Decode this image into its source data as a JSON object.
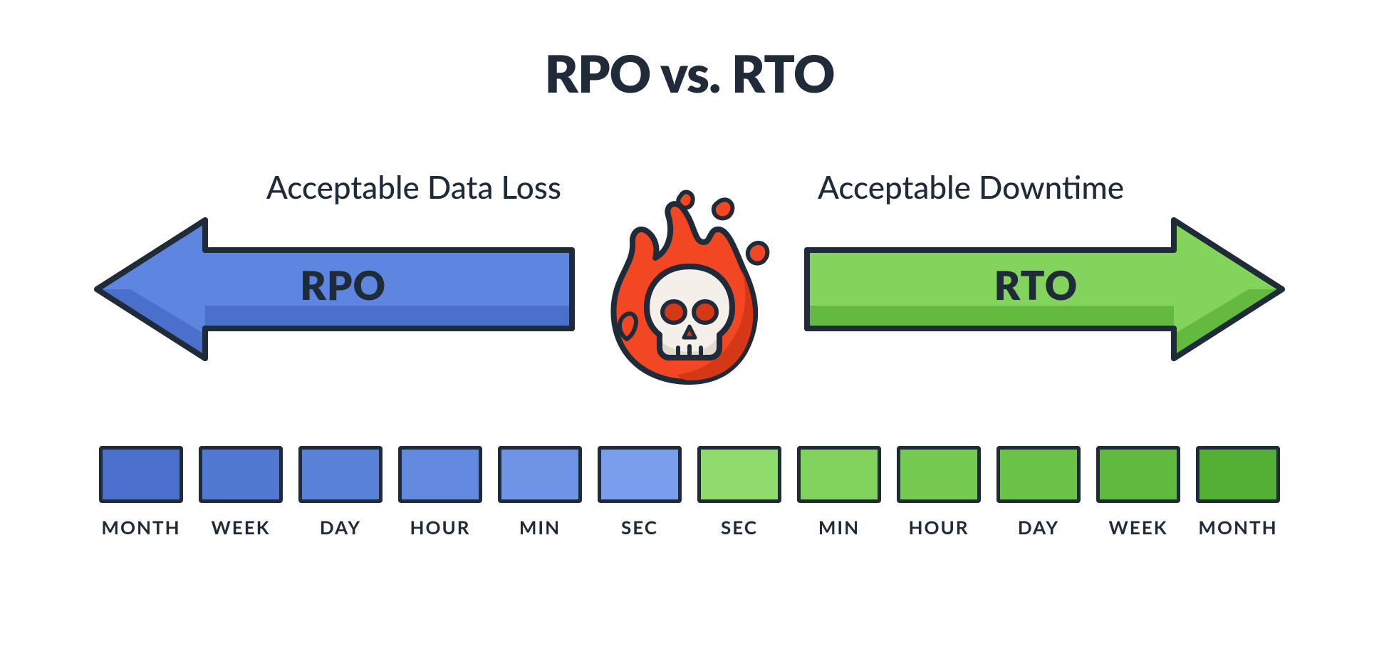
{
  "title": "RPO vs. RTO",
  "left": {
    "topLabel": "Acceptable Data Loss",
    "mainLabel": "RPO",
    "fill": "#5e86e0",
    "bottomFill": "#4b70cc",
    "stroke": "#1f2b38"
  },
  "right": {
    "topLabel": "Acceptable Downtime",
    "mainLabel": "RTO",
    "fill": "#83d35d",
    "bottomFill": "#64b93f",
    "stroke": "#1f2b38"
  },
  "fire": {
    "flame": "#f24722",
    "flameShadow": "#d43816",
    "skullFill": "#f4efe9",
    "skullShadow": "#e0d9cf",
    "eye": "#d43816",
    "stroke": "#1f2b38"
  },
  "timeline": {
    "stroke": "#1f2b38",
    "labelColor": "#1f2b38",
    "cells": [
      {
        "label": "MONTH",
        "color": "#4b70cc"
      },
      {
        "label": "WEEK",
        "color": "#5279d2"
      },
      {
        "label": "DAY",
        "color": "#5a81d8"
      },
      {
        "label": "HOUR",
        "color": "#648adf"
      },
      {
        "label": "MIN",
        "color": "#6f94e5"
      },
      {
        "label": "SEC",
        "color": "#7a9eeb"
      },
      {
        "label": "SEC",
        "color": "#8fdb6b"
      },
      {
        "label": "MIN",
        "color": "#82d35d"
      },
      {
        "label": "HOUR",
        "color": "#75cb50"
      },
      {
        "label": "DAY",
        "color": "#6ac346"
      },
      {
        "label": "WEEK",
        "color": "#5fba3d"
      },
      {
        "label": "MONTH",
        "color": "#54b035"
      }
    ]
  },
  "layout": {
    "arrowWidth": 680,
    "arrowHeight": 210,
    "strokeWidth": 8
  }
}
